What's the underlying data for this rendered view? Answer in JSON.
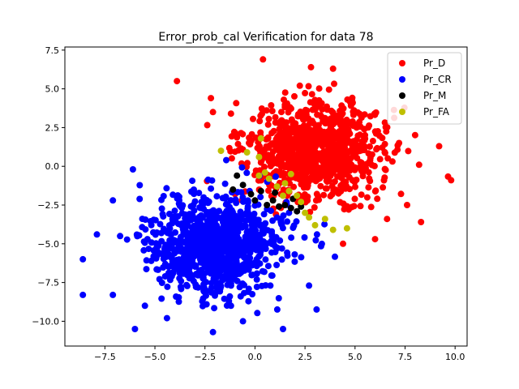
{
  "chart_data": {
    "type": "scatter",
    "title": "Error_prob_cal Verification for data 78",
    "xlabel": "",
    "ylabel": "",
    "xlim": [
      -9.5,
      10.6
    ],
    "ylim": [
      -11.6,
      7.7
    ],
    "x_ticks": [
      -7.5,
      -5.0,
      -2.5,
      0.0,
      2.5,
      5.0,
      7.5,
      10.0
    ],
    "y_ticks": [
      -10.0,
      -7.5,
      -5.0,
      -2.5,
      0.0,
      2.5,
      5.0,
      7.5
    ],
    "x_tick_labels": [
      "−7.5",
      "−5.0",
      "−2.5",
      "0.0",
      "2.5",
      "5.0",
      "7.5",
      "10.0"
    ],
    "y_tick_labels": [
      "−10.0",
      "−7.5",
      "−5.0",
      "−2.5",
      "0.0",
      "2.5",
      "5.0",
      "7.5"
    ],
    "grid": false,
    "legend_position": "top-right",
    "series": [
      {
        "name": "Pr_D",
        "color": "#ff0000",
        "cluster": {
          "mean": [
            3.0,
            1.0
          ],
          "sd": [
            1.6,
            1.55
          ],
          "n": 1000
        },
        "points": [
          [
            -3.9,
            5.5
          ],
          [
            0.4,
            6.9
          ],
          [
            2.8,
            6.4
          ],
          [
            3.9,
            6.3
          ],
          [
            9.8,
            -0.9
          ],
          [
            9.2,
            1.3
          ],
          [
            8.2,
            0.1
          ],
          [
            8.3,
            -3.6
          ],
          [
            7.6,
            -2.5
          ],
          [
            6.0,
            -4.7
          ],
          [
            4.4,
            -5.0
          ],
          [
            -2.2,
            4.4
          ],
          [
            -2.1,
            3.5
          ],
          [
            -1.2,
            3.4
          ],
          [
            7.2,
            1.5
          ],
          [
            6.6,
            -3.4
          ]
        ]
      },
      {
        "name": "Pr_CR",
        "color": "#0000ff",
        "cluster": {
          "mean": [
            -2.0,
            -5.0
          ],
          "sd": [
            1.6,
            1.6
          ],
          "n": 1000
        },
        "points": [
          [
            -8.6,
            -6.0
          ],
          [
            -8.6,
            -8.3
          ],
          [
            -7.9,
            -4.4
          ],
          [
            -7.1,
            -2.2
          ],
          [
            -6.0,
            -10.5
          ],
          [
            -6.1,
            -0.2
          ],
          [
            -2.1,
            -10.7
          ],
          [
            1.4,
            -10.5
          ],
          [
            -1.2,
            -9.0
          ],
          [
            2.7,
            -7.7
          ],
          [
            3.1,
            -4.4
          ],
          [
            -0.6,
            -10.0
          ],
          [
            -7.1,
            -8.3
          ],
          [
            -5.5,
            -9.0
          ],
          [
            -4.4,
            -9.8
          ]
        ]
      },
      {
        "name": "Pr_M",
        "color": "#000000",
        "points": [
          [
            -1.1,
            -1.5
          ],
          [
            -0.9,
            -0.6
          ],
          [
            -0.6,
            -1.2
          ],
          [
            -0.2,
            -1.8
          ],
          [
            0.3,
            -1.6
          ],
          [
            0.0,
            -2.2
          ],
          [
            0.6,
            -2.5
          ],
          [
            0.9,
            -2.2
          ],
          [
            1.2,
            -2.6
          ],
          [
            1.5,
            -2.5
          ],
          [
            1.8,
            -2.7
          ],
          [
            2.1,
            -2.9
          ],
          [
            2.3,
            -2.6
          ],
          [
            1.0,
            -1.7
          ],
          [
            1.9,
            -2.1
          ]
        ]
      },
      {
        "name": "Pr_FA",
        "color": "#bfbf00",
        "points": [
          [
            -1.7,
            1.0
          ],
          [
            -0.4,
            0.9
          ],
          [
            0.2,
            0.6
          ],
          [
            0.3,
            1.8
          ],
          [
            0.5,
            -0.4
          ],
          [
            0.2,
            -0.6
          ],
          [
            0.7,
            -0.8
          ],
          [
            1.1,
            -1.3
          ],
          [
            1.5,
            -1.1
          ],
          [
            1.4,
            -1.9
          ],
          [
            1.7,
            -1.6
          ],
          [
            2.1,
            -1.9
          ],
          [
            2.3,
            -2.3
          ],
          [
            1.8,
            -0.5
          ],
          [
            2.5,
            -3.0
          ],
          [
            2.7,
            -3.3
          ],
          [
            3.0,
            -3.8
          ],
          [
            3.5,
            -3.4
          ],
          [
            3.9,
            -4.1
          ],
          [
            4.6,
            -4.0
          ]
        ]
      }
    ]
  }
}
